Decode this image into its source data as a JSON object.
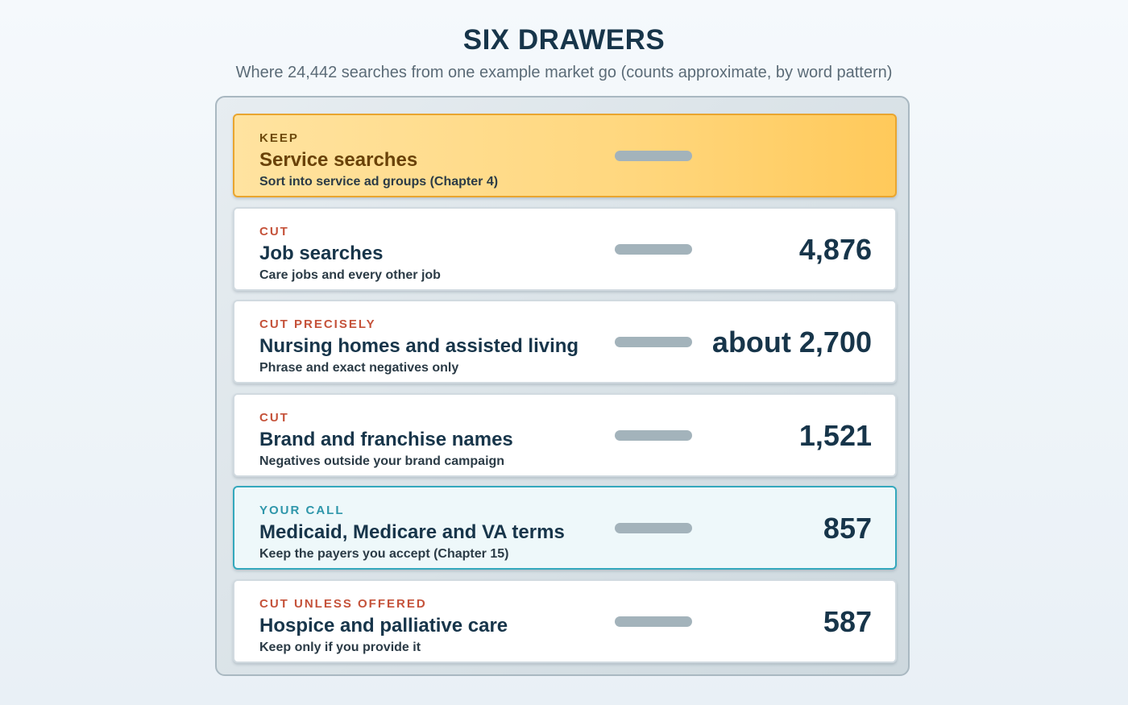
{
  "header": {
    "title": "SIX DRAWERS",
    "subtitle": "Where 24,442 searches from one example market go (counts approximate, by word pattern)"
  },
  "colors": {
    "keep_accent": "#e9a52f",
    "cut_label": "#c5523a",
    "call_accent": "#34a8bd",
    "text_dark": "#17354a"
  },
  "drawers": [
    {
      "label": "KEEP",
      "name": "Service searches",
      "note": "Sort into service ad groups (Chapter 4)",
      "count": ""
    },
    {
      "label": "CUT",
      "name": "Job searches",
      "note": "Care jobs and every other job",
      "count": "4,876"
    },
    {
      "label": "CUT PRECISELY",
      "name": "Nursing homes and assisted living",
      "note": "Phrase and exact negatives only",
      "count": "about 2,700"
    },
    {
      "label": "CUT",
      "name": "Brand and franchise names",
      "note": "Negatives outside your brand campaign",
      "count": "1,521"
    },
    {
      "label": "YOUR CALL",
      "name": "Medicaid, Medicare and VA terms",
      "note": "Keep the payers you accept (Chapter 15)",
      "count": "857"
    },
    {
      "label": "CUT UNLESS OFFERED",
      "name": "Hospice and palliative care",
      "note": "Keep only if you provide it",
      "count": "587"
    }
  ]
}
